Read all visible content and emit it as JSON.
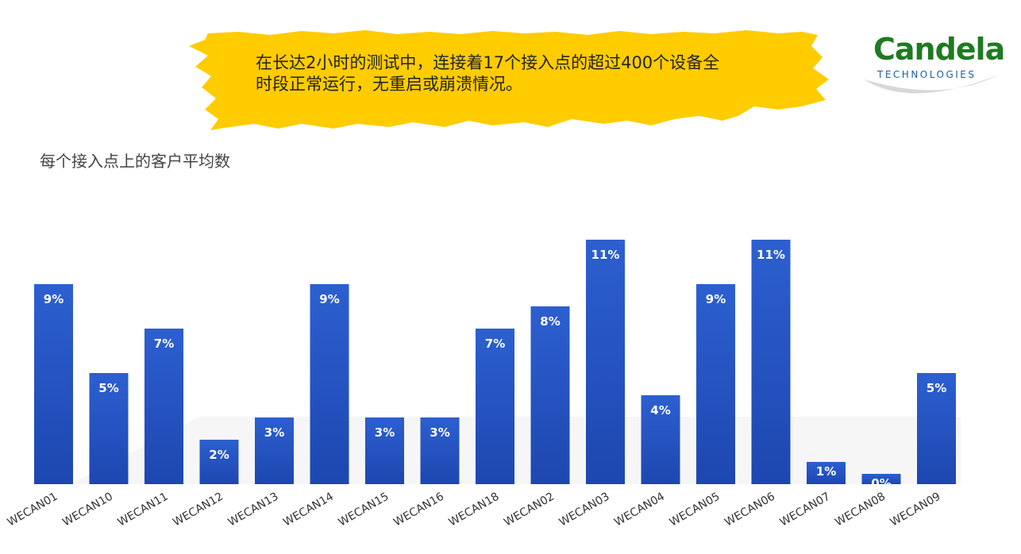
{
  "banner": {
    "line1": "在长达2小时的测试中，连接着17个接入点的超过400个设备全",
    "line2": "时段正常运行，无重启或崩溃情况。"
  },
  "logo": {
    "main": "Candela",
    "sub": "TECHNOLOGIES"
  },
  "colors": {
    "banner": "#ffcc00",
    "bar": "#2d5fd0",
    "bar_dark": "#1d47b0",
    "logo_green": "#1f7a22",
    "logo_blue": "#1f5f9a"
  },
  "chart_data": {
    "type": "bar",
    "title": "每个接入点上的客户平均数",
    "categories": [
      "WECAN01",
      "WECAN10",
      "WECAN11",
      "WECAN12",
      "WECAN13",
      "WECAN14",
      "WECAN15",
      "WECAN16",
      "WECAN18",
      "WECAN02",
      "WECAN03",
      "WECAN04",
      "WECAN05",
      "WECAN06",
      "WECAN07",
      "WECAN08",
      "WECAN09"
    ],
    "values": [
      9,
      5,
      7,
      2,
      3,
      9,
      3,
      3,
      7,
      8,
      11,
      4,
      9,
      11,
      1,
      0,
      5
    ],
    "value_labels": [
      "9%",
      "5%",
      "7%",
      "2%",
      "3%",
      "9%",
      "3%",
      "3%",
      "7%",
      "8%",
      "11%",
      "4%",
      "9%",
      "11%",
      "1%",
      "0%",
      "5%"
    ],
    "ylim": [
      0,
      12.5
    ],
    "grid": false,
    "legend": "none"
  }
}
